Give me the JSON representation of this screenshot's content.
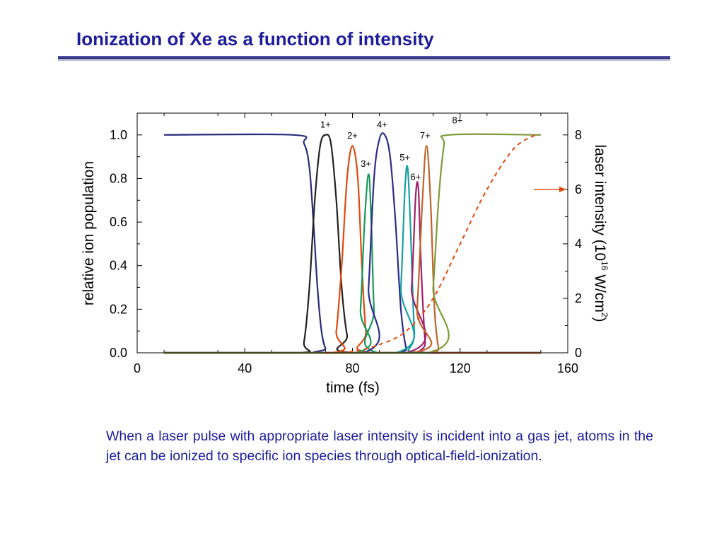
{
  "slide": {
    "title": "Ionization of Xe as a function of intensity",
    "caption": "When a laser pulse with appropriate laser intensity is incident into a gas jet, atoms in the jet can be ionized to specific ion species through optical-field-ionization.",
    "colors": {
      "title": "#1f1c9c",
      "caption": "#1f1c9c"
    }
  },
  "chart_data": {
    "type": "line",
    "xlabel": "time (fs)",
    "ylabel": "relative ion population",
    "y2label_prefix": "laser intensity (10",
    "y2label_exp": "16",
    "y2label_mid": " W/cm",
    "y2label_exp2": "2",
    "y2label_suffix": ")",
    "xlim": [
      0,
      160
    ],
    "ylim": [
      0,
      1.1
    ],
    "y2lim": [
      0,
      8.8
    ],
    "xticks": [
      0,
      40,
      80,
      120,
      160
    ],
    "xtick_labels": [
      "0",
      "40",
      "80",
      "120",
      "160"
    ],
    "yticks": [
      0,
      0.2,
      0.4,
      0.6,
      0.8,
      1.0
    ],
    "ytick_labels": [
      "0.0",
      "0.2",
      "0.4",
      "0.6",
      "0.8",
      "1.0"
    ],
    "y2ticks": [
      0,
      2,
      4,
      6,
      8
    ],
    "y2tick_labels": [
      "0",
      "2",
      "4",
      "6",
      "8"
    ],
    "series": [
      {
        "name": "0+",
        "color": "#2a2a7a",
        "points": [
          [
            10,
            1.0
          ],
          [
            58,
            1.0
          ],
          [
            62,
            0.96
          ],
          [
            64,
            0.85
          ],
          [
            65.5,
            0.6
          ],
          [
            67,
            0.3
          ],
          [
            68.5,
            0.1
          ],
          [
            70,
            0.02
          ],
          [
            72,
            0
          ],
          [
            150,
            0
          ]
        ]
      },
      {
        "name": "1+",
        "color": "#222222",
        "points": [
          [
            10,
            0
          ],
          [
            60,
            0
          ],
          [
            62,
            0.05
          ],
          [
            64,
            0.3
          ],
          [
            66,
            0.7
          ],
          [
            68,
            0.95
          ],
          [
            70,
            1.0
          ],
          [
            72,
            0.96
          ],
          [
            74,
            0.7
          ],
          [
            76,
            0.3
          ],
          [
            78,
            0.08
          ],
          [
            80,
            0
          ],
          [
            150,
            0
          ]
        ]
      },
      {
        "name": "2+",
        "color": "#e04a10",
        "points": [
          [
            10,
            0
          ],
          [
            72,
            0
          ],
          [
            74,
            0.1
          ],
          [
            76,
            0.4
          ],
          [
            78,
            0.8
          ],
          [
            80,
            0.95
          ],
          [
            82,
            0.8
          ],
          [
            83.5,
            0.4
          ],
          [
            85,
            0.1
          ],
          [
            87,
            0
          ],
          [
            150,
            0
          ]
        ]
      },
      {
        "name": "3+",
        "color": "#17995a",
        "points": [
          [
            10,
            0
          ],
          [
            81,
            0
          ],
          [
            83,
            0.2
          ],
          [
            84.5,
            0.6
          ],
          [
            86,
            0.82
          ],
          [
            87,
            0.6
          ],
          [
            88,
            0.2
          ],
          [
            89.5,
            0
          ],
          [
            150,
            0
          ]
        ]
      },
      {
        "name": "4+",
        "color": "#2e2c8a",
        "points": [
          [
            10,
            0
          ],
          [
            84,
            0
          ],
          [
            86,
            0.3
          ],
          [
            88,
            0.8
          ],
          [
            90,
            0.98
          ],
          [
            92,
            1.0
          ],
          [
            94,
            0.9
          ],
          [
            96,
            0.6
          ],
          [
            98,
            0.2
          ],
          [
            100,
            0.02
          ],
          [
            102,
            0
          ],
          [
            150,
            0
          ]
        ]
      },
      {
        "name": "5+",
        "color": "#18a0a0",
        "points": [
          [
            10,
            0
          ],
          [
            96,
            0
          ],
          [
            98,
            0.3
          ],
          [
            99.5,
            0.75
          ],
          [
            100.5,
            0.85
          ],
          [
            101.5,
            0.6
          ],
          [
            103,
            0.1
          ],
          [
            104.5,
            0
          ],
          [
            150,
            0
          ]
        ]
      },
      {
        "name": "6+",
        "color": "#a0206c",
        "points": [
          [
            10,
            0
          ],
          [
            100,
            0
          ],
          [
            102,
            0.3
          ],
          [
            103.5,
            0.72
          ],
          [
            104.5,
            0.75
          ],
          [
            105.5,
            0.4
          ],
          [
            107,
            0.05
          ],
          [
            108,
            0
          ],
          [
            150,
            0
          ]
        ]
      },
      {
        "name": "7+",
        "color": "#c0622a",
        "points": [
          [
            10,
            0
          ],
          [
            102,
            0
          ],
          [
            104,
            0.2
          ],
          [
            106,
            0.7
          ],
          [
            107.5,
            0.95
          ],
          [
            109,
            0.7
          ],
          [
            110.5,
            0.2
          ],
          [
            112,
            0.02
          ],
          [
            113,
            0
          ],
          [
            150,
            0
          ]
        ]
      },
      {
        "name": "8+",
        "color": "#7f9a3a",
        "points": [
          [
            10,
            0
          ],
          [
            108,
            0
          ],
          [
            110,
            0.3
          ],
          [
            112,
            0.7
          ],
          [
            114,
            0.95
          ],
          [
            116,
            1.0
          ],
          [
            150,
            1.0
          ]
        ]
      }
    ],
    "intensity_curve": {
      "name": "laser intensity",
      "color": "#e04a10",
      "style": "dashed",
      "points": [
        [
          70,
          0
        ],
        [
          80,
          0.05
        ],
        [
          90,
          0.3
        ],
        [
          100,
          0.8
        ],
        [
          110,
          2.0
        ],
        [
          120,
          4.0
        ],
        [
          130,
          6.0
        ],
        [
          140,
          7.5
        ],
        [
          148,
          8.0
        ]
      ]
    },
    "peak_labels": [
      {
        "text": "1+",
        "x": 70,
        "y": 1.02
      },
      {
        "text": "2+",
        "x": 80,
        "y": 0.97
      },
      {
        "text": "3+",
        "x": 85,
        "y": 0.84
      },
      {
        "text": "4+",
        "x": 91,
        "y": 1.02
      },
      {
        "text": "5+",
        "x": 99.5,
        "y": 0.87
      },
      {
        "text": "6+",
        "x": 103.5,
        "y": 0.78
      },
      {
        "text": "7+",
        "x": 107,
        "y": 0.97
      },
      {
        "text": "8+",
        "x": 119,
        "y": 1.04
      }
    ],
    "axis_arrow": {
      "color": "#e04a10",
      "target": "right-axis"
    },
    "grid": false,
    "legend": "none"
  }
}
